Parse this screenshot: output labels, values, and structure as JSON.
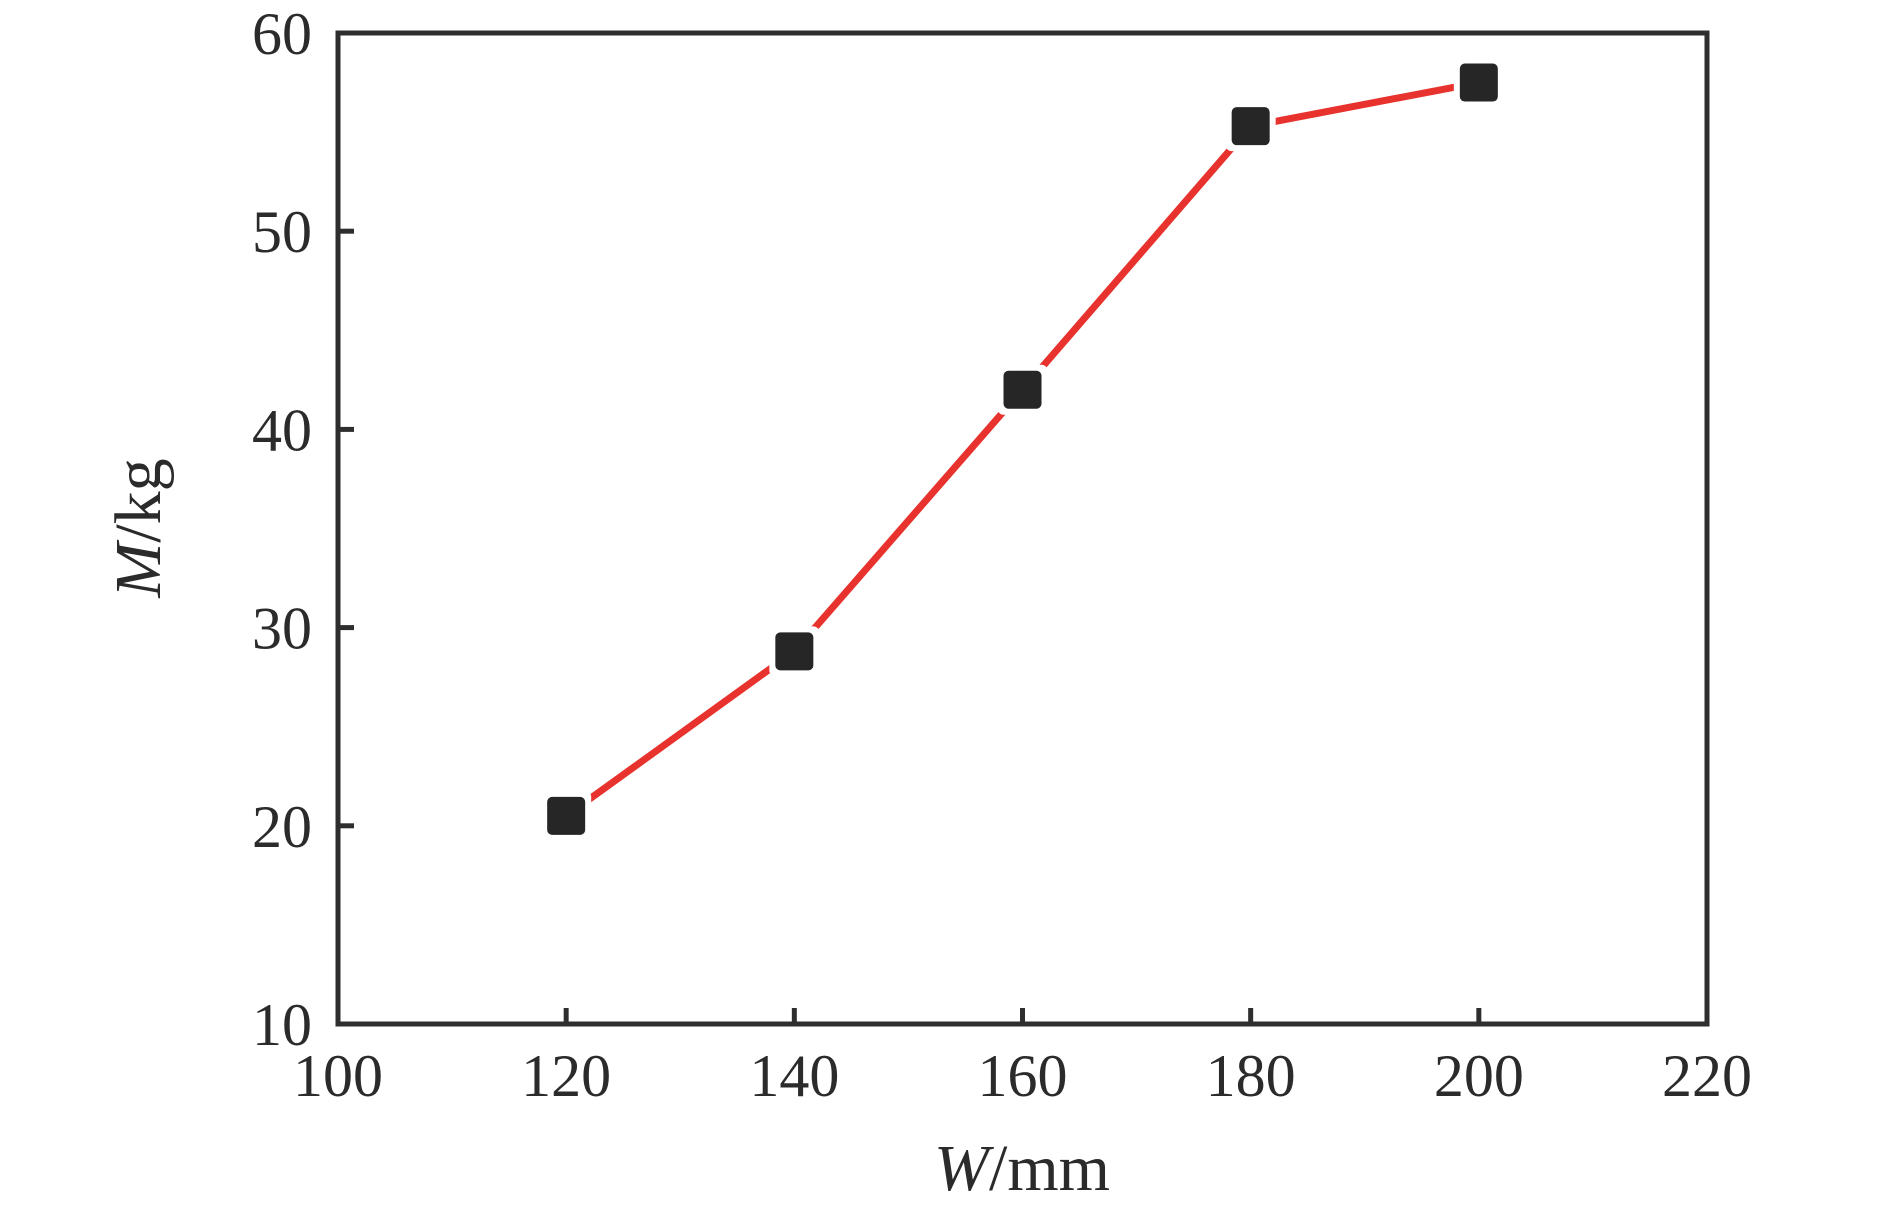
{
  "figure": {
    "background": "#ffffff",
    "frame_color": "#2e2e2e",
    "text_color": "#2b2b2b",
    "xlabel_symbol": "W",
    "xlabel_rest": "/mm",
    "ylabel_symbol": "M",
    "ylabel_rest": "/kg"
  },
  "chart_data": {
    "type": "line",
    "title": "",
    "xlabel": "W/mm",
    "ylabel": "M/kg",
    "x": [
      120,
      140,
      160,
      180,
      200
    ],
    "series": [
      {
        "name": "M",
        "values": [
          20.5,
          28.8,
          42.0,
          55.3,
          57.5
        ],
        "line_color": "#e8322d",
        "line_width": 7,
        "marker": "square",
        "marker_color": "#262626",
        "marker_size": 38
      }
    ],
    "xlim": [
      100,
      220
    ],
    "ylim": [
      10,
      60
    ],
    "xticks": [
      100,
      120,
      140,
      160,
      180,
      200,
      220
    ],
    "yticks": [
      10,
      20,
      30,
      40,
      50,
      60
    ],
    "grid": false,
    "legend": "none",
    "frame": "box",
    "tick_direction": "in"
  }
}
